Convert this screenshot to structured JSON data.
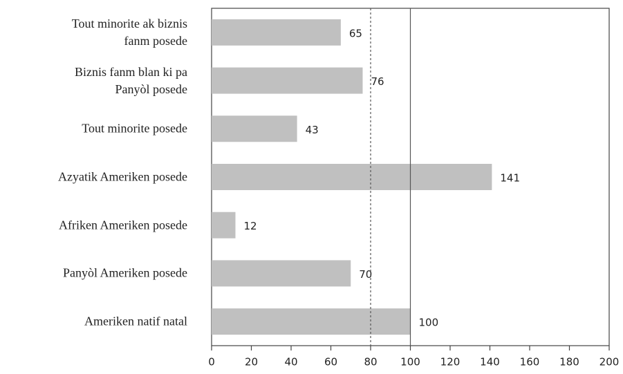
{
  "chart_data": {
    "type": "bar",
    "orientation": "horizontal",
    "categories": [
      "Tout minorite ak biznis\nfanm posede",
      "Biznis fanm blan ki pa\nPanyòl posede",
      "Tout minorite posede",
      "Azyatik Ameriken posede",
      "Afriken Ameriken posede",
      "Panyòl Ameriken posede",
      "Ameriken natif natal"
    ],
    "values": [
      65,
      76,
      43,
      141,
      12,
      70,
      100
    ],
    "color": "#c0c0c0",
    "xlim": [
      0,
      200
    ],
    "xticks": [
      0,
      20,
      40,
      60,
      80,
      100,
      120,
      140,
      160,
      180,
      200
    ],
    "grid": false,
    "reference_lines": [
      {
        "value": 80,
        "style": "dotted"
      },
      {
        "value": 100,
        "style": "solid"
      }
    ]
  }
}
